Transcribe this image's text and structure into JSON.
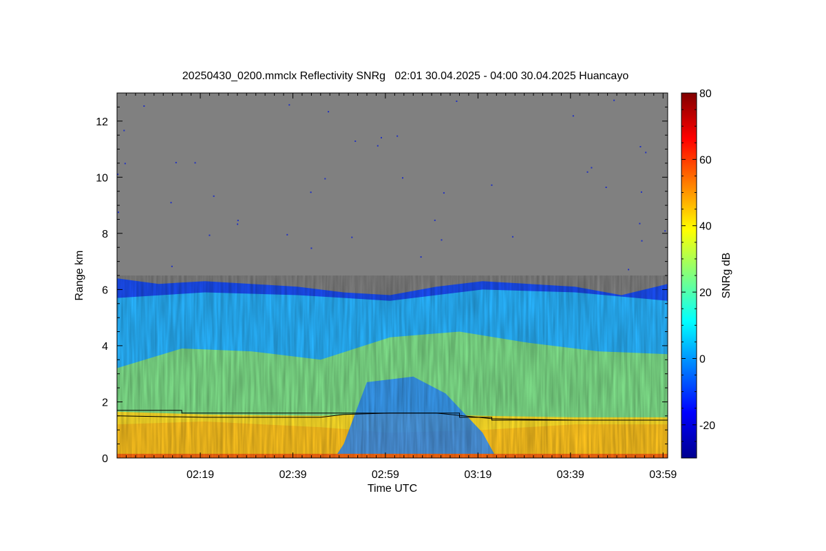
{
  "chart_data": {
    "type": "heatmap",
    "title": "20250430_0200.mmclx Reflectivity SNRg   02:01 30.04.2025 - 04:00 30.04.2025 Huancayo",
    "xlabel": "Time UTC",
    "ylabel": "Range km",
    "colorbar_label": "SNRg dB",
    "x_ticks": [
      "02:19",
      "02:39",
      "02:59",
      "03:19",
      "03:39",
      "03:59"
    ],
    "y_ticks": [
      0,
      2,
      4,
      6,
      8,
      10,
      12
    ],
    "colorbar_ticks": [
      -20,
      0,
      20,
      40,
      60,
      80
    ],
    "xlim_minutes_utc": [
      121,
      240
    ],
    "ylim": [
      0,
      13
    ],
    "colorbar_range": [
      -30,
      80
    ],
    "colormap": "jet",
    "no_signal_color": "#808080",
    "echo_top_km": [
      {
        "t": "02:01",
        "km": 6.4
      },
      {
        "t": "02:10",
        "km": 6.2
      },
      {
        "t": "02:20",
        "km": 6.3
      },
      {
        "t": "02:30",
        "km": 6.2
      },
      {
        "t": "02:40",
        "km": 6.1
      },
      {
        "t": "02:50",
        "km": 5.9
      },
      {
        "t": "03:00",
        "km": 5.8
      },
      {
        "t": "03:10",
        "km": 6.1
      },
      {
        "t": "03:20",
        "km": 6.3
      },
      {
        "t": "03:30",
        "km": 6.2
      },
      {
        "t": "03:40",
        "km": 6.1
      },
      {
        "t": "03:50",
        "km": 5.8
      },
      {
        "t": "04:00",
        "km": 6.2
      }
    ],
    "snr_regions_db": {
      "above_echo_top": "no signal",
      "near_echo_top": -15,
      "mid_layer_4_to_6_km": 5,
      "lower_layer_2_to_4_km": 20,
      "below_1_6_km": 38,
      "surface": 65
    },
    "overlay_lines_km": {
      "step_line": [
        {
          "t": "02:01",
          "km": 1.7
        },
        {
          "t": "02:15",
          "km": 1.7
        },
        {
          "t": "02:15",
          "km": 1.6
        },
        {
          "t": "03:15",
          "km": 1.6
        },
        {
          "t": "03:15",
          "km": 1.45
        },
        {
          "t": "03:22",
          "km": 1.45
        },
        {
          "t": "03:22",
          "km": 1.35
        },
        {
          "t": "04:00",
          "km": 1.35
        }
      ],
      "wavy_line": [
        {
          "t": "02:01",
          "km": 1.5
        },
        {
          "t": "02:20",
          "km": 1.45
        },
        {
          "t": "02:45",
          "km": 1.45
        },
        {
          "t": "02:50",
          "km": 1.55
        },
        {
          "t": "03:00",
          "km": 1.6
        },
        {
          "t": "03:10",
          "km": 1.6
        },
        {
          "t": "03:22",
          "km": 1.4
        },
        {
          "t": "03:40",
          "km": 1.35
        },
        {
          "t": "04:00",
          "km": 1.35
        }
      ]
    }
  }
}
